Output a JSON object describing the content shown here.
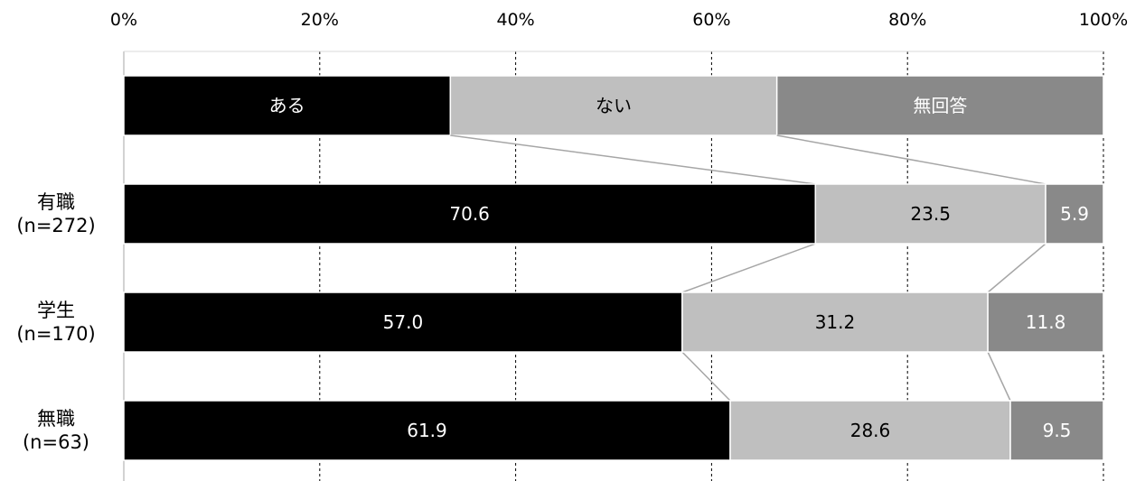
{
  "chart_data": {
    "type": "bar",
    "orientation": "horizontal",
    "stacked": "percent",
    "x_ticks": [
      "0%",
      "20%",
      "40%",
      "60%",
      "80%",
      "100%"
    ],
    "xlim": [
      0,
      100
    ],
    "grid": true,
    "legend_bar": {
      "labels": [
        "ある",
        "ない",
        "無回答"
      ]
    },
    "categories": [
      {
        "name": "有職",
        "n": "(n=272)"
      },
      {
        "name": "学生",
        "n": "(n=170)"
      },
      {
        "name": "無職",
        "n": "(n=63)"
      }
    ],
    "series": [
      {
        "name": "ある",
        "color": "#000000",
        "label_color": "#ffffff",
        "values": [
          70.6,
          57.0,
          61.9
        ],
        "labels": [
          "70.6",
          "57.0",
          "61.9"
        ]
      },
      {
        "name": "ない",
        "color": "#bfbfbf",
        "label_color": "#000000",
        "values": [
          23.5,
          31.2,
          28.6
        ],
        "labels": [
          "23.5",
          "31.2",
          "28.6"
        ]
      },
      {
        "name": "無回答",
        "color": "#898989",
        "label_color": "#ffffff",
        "values": [
          5.9,
          11.8,
          9.5
        ],
        "labels": [
          "5.9",
          "11.8",
          "9.5"
        ]
      }
    ]
  }
}
